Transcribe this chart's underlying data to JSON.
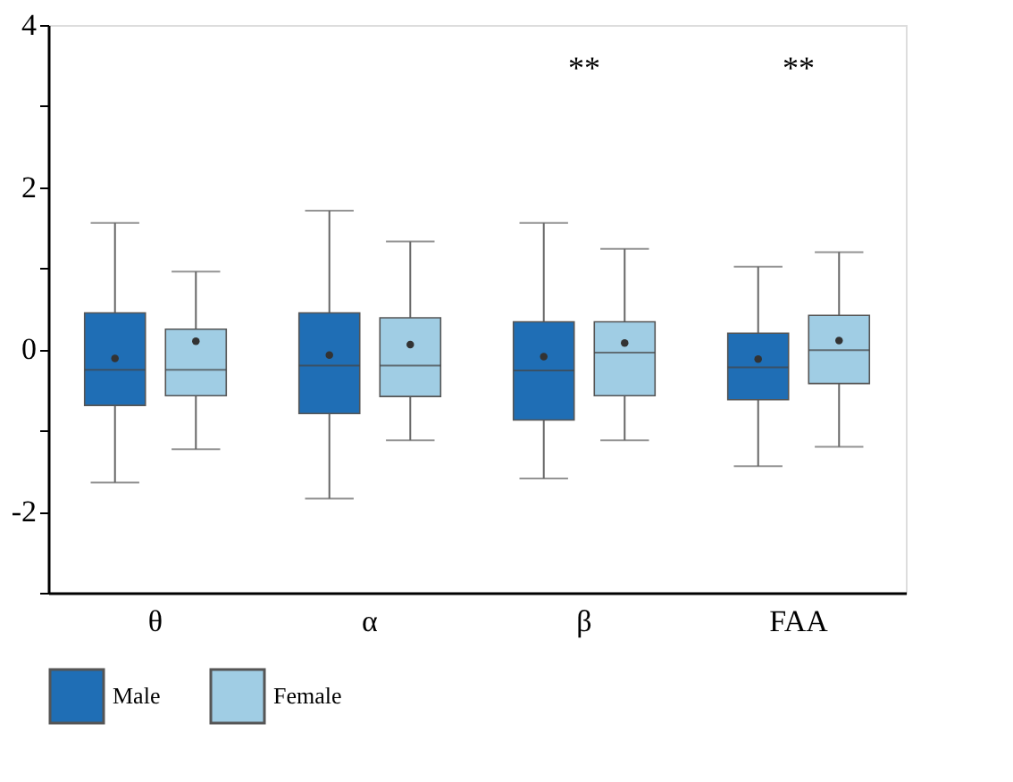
{
  "chart_data": {
    "type": "box",
    "categories": [
      "θ",
      "α",
      "β",
      "FAA"
    ],
    "series": [
      {
        "name": "Male",
        "color": "#1f6eb5",
        "boxes": [
          {
            "low": -1.64,
            "q1": -0.69,
            "median": -0.25,
            "q3": 0.45,
            "high": 1.56,
            "mean": -0.11
          },
          {
            "low": -1.84,
            "q1": -0.79,
            "median": -0.2,
            "q3": 0.45,
            "high": 1.71,
            "mean": -0.07
          },
          {
            "low": -1.59,
            "q1": -0.87,
            "median": -0.26,
            "q3": 0.34,
            "high": 1.56,
            "mean": -0.09
          },
          {
            "low": -1.44,
            "q1": -0.62,
            "median": -0.22,
            "q3": 0.2,
            "high": 1.02,
            "mean": -0.12
          }
        ]
      },
      {
        "name": "Female",
        "color": "#a0cde4",
        "boxes": [
          {
            "low": -1.23,
            "q1": -0.57,
            "median": -0.25,
            "q3": 0.25,
            "high": 0.96,
            "mean": 0.1
          },
          {
            "low": -1.12,
            "q1": -0.58,
            "median": -0.2,
            "q3": 0.39,
            "high": 1.33,
            "mean": 0.06
          },
          {
            "low": -1.12,
            "q1": -0.57,
            "median": -0.04,
            "q3": 0.34,
            "high": 1.24,
            "mean": 0.08
          },
          {
            "low": -1.2,
            "q1": -0.42,
            "median": -0.01,
            "q3": 0.42,
            "high": 1.2,
            "mean": 0.11
          }
        ]
      }
    ],
    "ylim": [
      -3,
      4
    ],
    "yticks": [
      {
        "value": -3,
        "label": null
      },
      -2,
      {
        "value": -1,
        "label": null
      },
      0,
      {
        "value": 1,
        "label": null
      },
      2,
      {
        "value": 3,
        "label": null
      },
      4
    ],
    "annotations": [
      "**",
      "**"
    ],
    "legend": "bottom",
    "grid": false
  }
}
